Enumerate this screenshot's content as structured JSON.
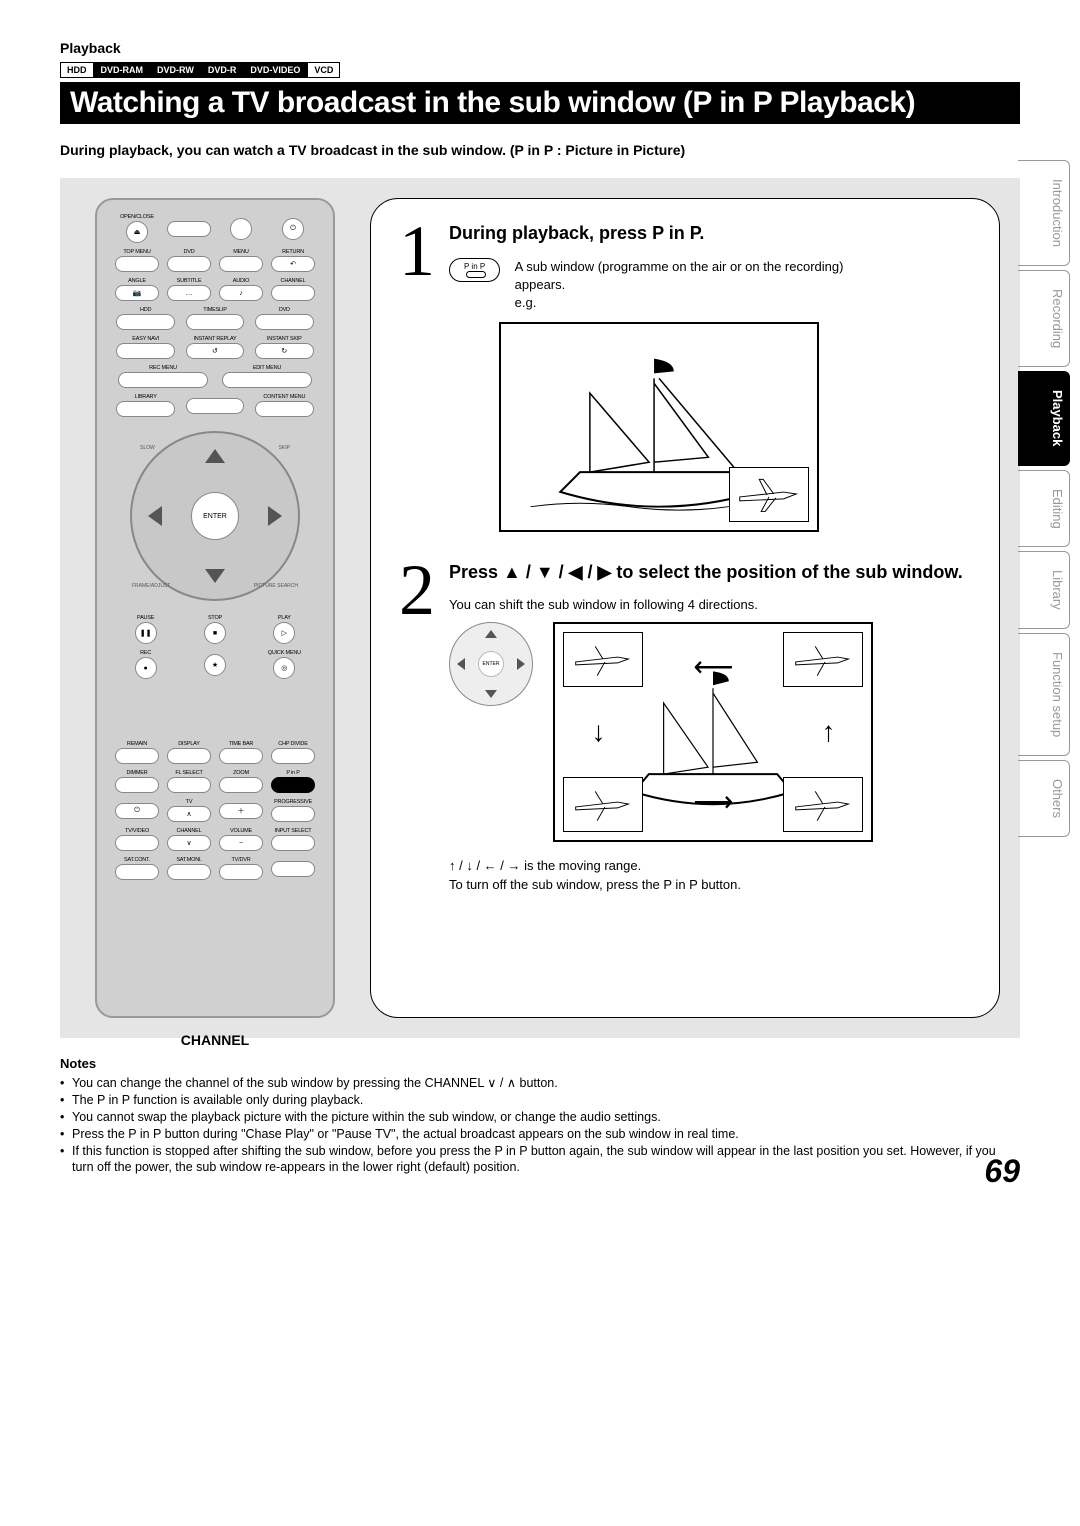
{
  "header": {
    "section": "Playback",
    "discs": [
      {
        "label": "HDD",
        "dark": false
      },
      {
        "label": "DVD-RAM",
        "dark": true
      },
      {
        "label": "DVD-RW",
        "dark": true
      },
      {
        "label": "DVD-R",
        "dark": true
      },
      {
        "label": "DVD-VIDEO",
        "dark": true
      },
      {
        "label": "VCD",
        "dark": false
      }
    ],
    "title": "Watching a TV broadcast in the sub window (P in P Playback)",
    "intro": "During playback, you can watch a TV broadcast in the sub window. (P in P : Picture in Picture)"
  },
  "remote": {
    "rows": [
      [
        {
          "cap": "OPEN/CLOSE",
          "round": true,
          "sym": "⏏"
        },
        {
          "cap": "",
          "round": false,
          "sym": ""
        },
        {
          "cap": "",
          "round": true,
          "sym": ""
        },
        {
          "cap": "",
          "round": true,
          "sym": "⏻"
        }
      ],
      [
        {
          "cap": "TOP MENU",
          "sym": ""
        },
        {
          "cap": "DVD",
          "sym": ""
        },
        {
          "cap": "MENU",
          "sym": ""
        },
        {
          "cap": "RETURN",
          "sym": "↶"
        }
      ],
      [
        {
          "cap": "ANGLE",
          "sym": "📷"
        },
        {
          "cap": "SUBTITLE",
          "sym": "…"
        },
        {
          "cap": "AUDIO",
          "sym": "♪"
        },
        {
          "cap": "CHANNEL",
          "sym": ""
        }
      ],
      [
        {
          "cap": "HDD",
          "sym": ""
        },
        {
          "cap": "TIMESLIP",
          "sym": ""
        },
        {
          "cap": "DVD",
          "sym": ""
        }
      ],
      [
        {
          "cap": "EASY NAVI",
          "sym": ""
        },
        {
          "cap": "INSTANT REPLAY",
          "sym": "↺"
        },
        {
          "cap": "INSTANT SKIP",
          "sym": "↻"
        }
      ],
      [
        {
          "cap": "REC MENU",
          "sym": ""
        },
        {
          "cap": "EDIT MENU",
          "sym": ""
        }
      ],
      [
        {
          "cap": "LIBRARY",
          "sym": ""
        },
        {
          "cap": "",
          "sym": ""
        },
        {
          "cap": "CONTENT MENU",
          "sym": ""
        }
      ]
    ],
    "dpad_center": "ENTER",
    "dpad_labels": {
      "tl": "SLOW",
      "tr": "SKIP",
      "bl": "FRAME/ADJUST",
      "br": "PICTURE SEARCH"
    },
    "playrow": [
      {
        "cap": "PAUSE",
        "sym": "❚❚"
      },
      {
        "cap": "STOP",
        "sym": "■"
      },
      {
        "cap": "PLAY",
        "sym": "▷"
      }
    ],
    "recrow": [
      {
        "cap": "REC",
        "sym": "●"
      },
      {
        "cap": "",
        "sym": "★"
      },
      {
        "cap": "QUICK MENU",
        "sym": "◎"
      }
    ],
    "lowrows": [
      [
        {
          "cap": "REMAIN"
        },
        {
          "cap": "DISPLAY"
        },
        {
          "cap": "TIME BAR"
        },
        {
          "cap": "CHP DIVIDE"
        }
      ],
      [
        {
          "cap": "DIMMER"
        },
        {
          "cap": "FL SELECT"
        },
        {
          "cap": "ZOOM"
        },
        {
          "cap": "P in P",
          "highlight": true
        }
      ],
      [
        {
          "cap": "",
          "sym": "⏻"
        },
        {
          "cap": "TV",
          "sym": "∧"
        },
        {
          "cap": "",
          "sym": "＋"
        },
        {
          "cap": "PROGRESSIVE",
          "sym": ""
        }
      ],
      [
        {
          "cap": "TV/VIDEO"
        },
        {
          "cap": "CHANNEL",
          "sym": "∨"
        },
        {
          "cap": "VOLUME",
          "sym": "−"
        },
        {
          "cap": "INPUT SELECT"
        }
      ],
      [
        {
          "cap": "SAT.CONT."
        },
        {
          "cap": "SAT.MONI."
        },
        {
          "cap": "TV/DVR"
        },
        {
          "cap": ""
        }
      ]
    ],
    "channel_label": "CHANNEL"
  },
  "step1": {
    "num": "1",
    "title": "During playback, press P in P.",
    "text1": "A sub window (programme on the air or on the recording) appears.",
    "eg": "e.g.",
    "pip_btn": "P in P"
  },
  "step2": {
    "num": "2",
    "title": "Press ▲ / ▼ / ◀ / ▶ to select the position of the sub window.",
    "text1": "You can shift the sub window in following 4 directions.",
    "text2": "↑ / ↓ / ← / → is the moving range.",
    "text3": "To turn off the sub window, press the P in P button."
  },
  "notes": {
    "title": "Notes",
    "items": [
      "You can change the channel of the sub window by pressing the CHANNEL ∨ / ∧ button.",
      "The P in P function is available only during playback.",
      "You cannot swap the playback picture with the picture within the sub window, or change the audio settings.",
      "Press the P in P button during \"Chase Play\" or \"Pause TV\", the actual broadcast appears on the sub window in real time.",
      "If this function is stopped after shifting the sub window, before you press the P in P button again, the sub window will appear in the last position you set. However, if you turn off the power, the sub window re-appears in the lower right (default) position."
    ]
  },
  "side_tabs": [
    {
      "label": "Introduction",
      "active": false
    },
    {
      "label": "Recording",
      "active": false
    },
    {
      "label": "Playback",
      "active": true
    },
    {
      "label": "Editing",
      "active": false
    },
    {
      "label": "Library",
      "active": false
    },
    {
      "label": "Function setup",
      "active": false
    },
    {
      "label": "Others",
      "active": false
    }
  ],
  "page_number": "69",
  "colors": {
    "bg_gray": "#e5e5e5",
    "remote_gray": "#d0d0d0"
  }
}
